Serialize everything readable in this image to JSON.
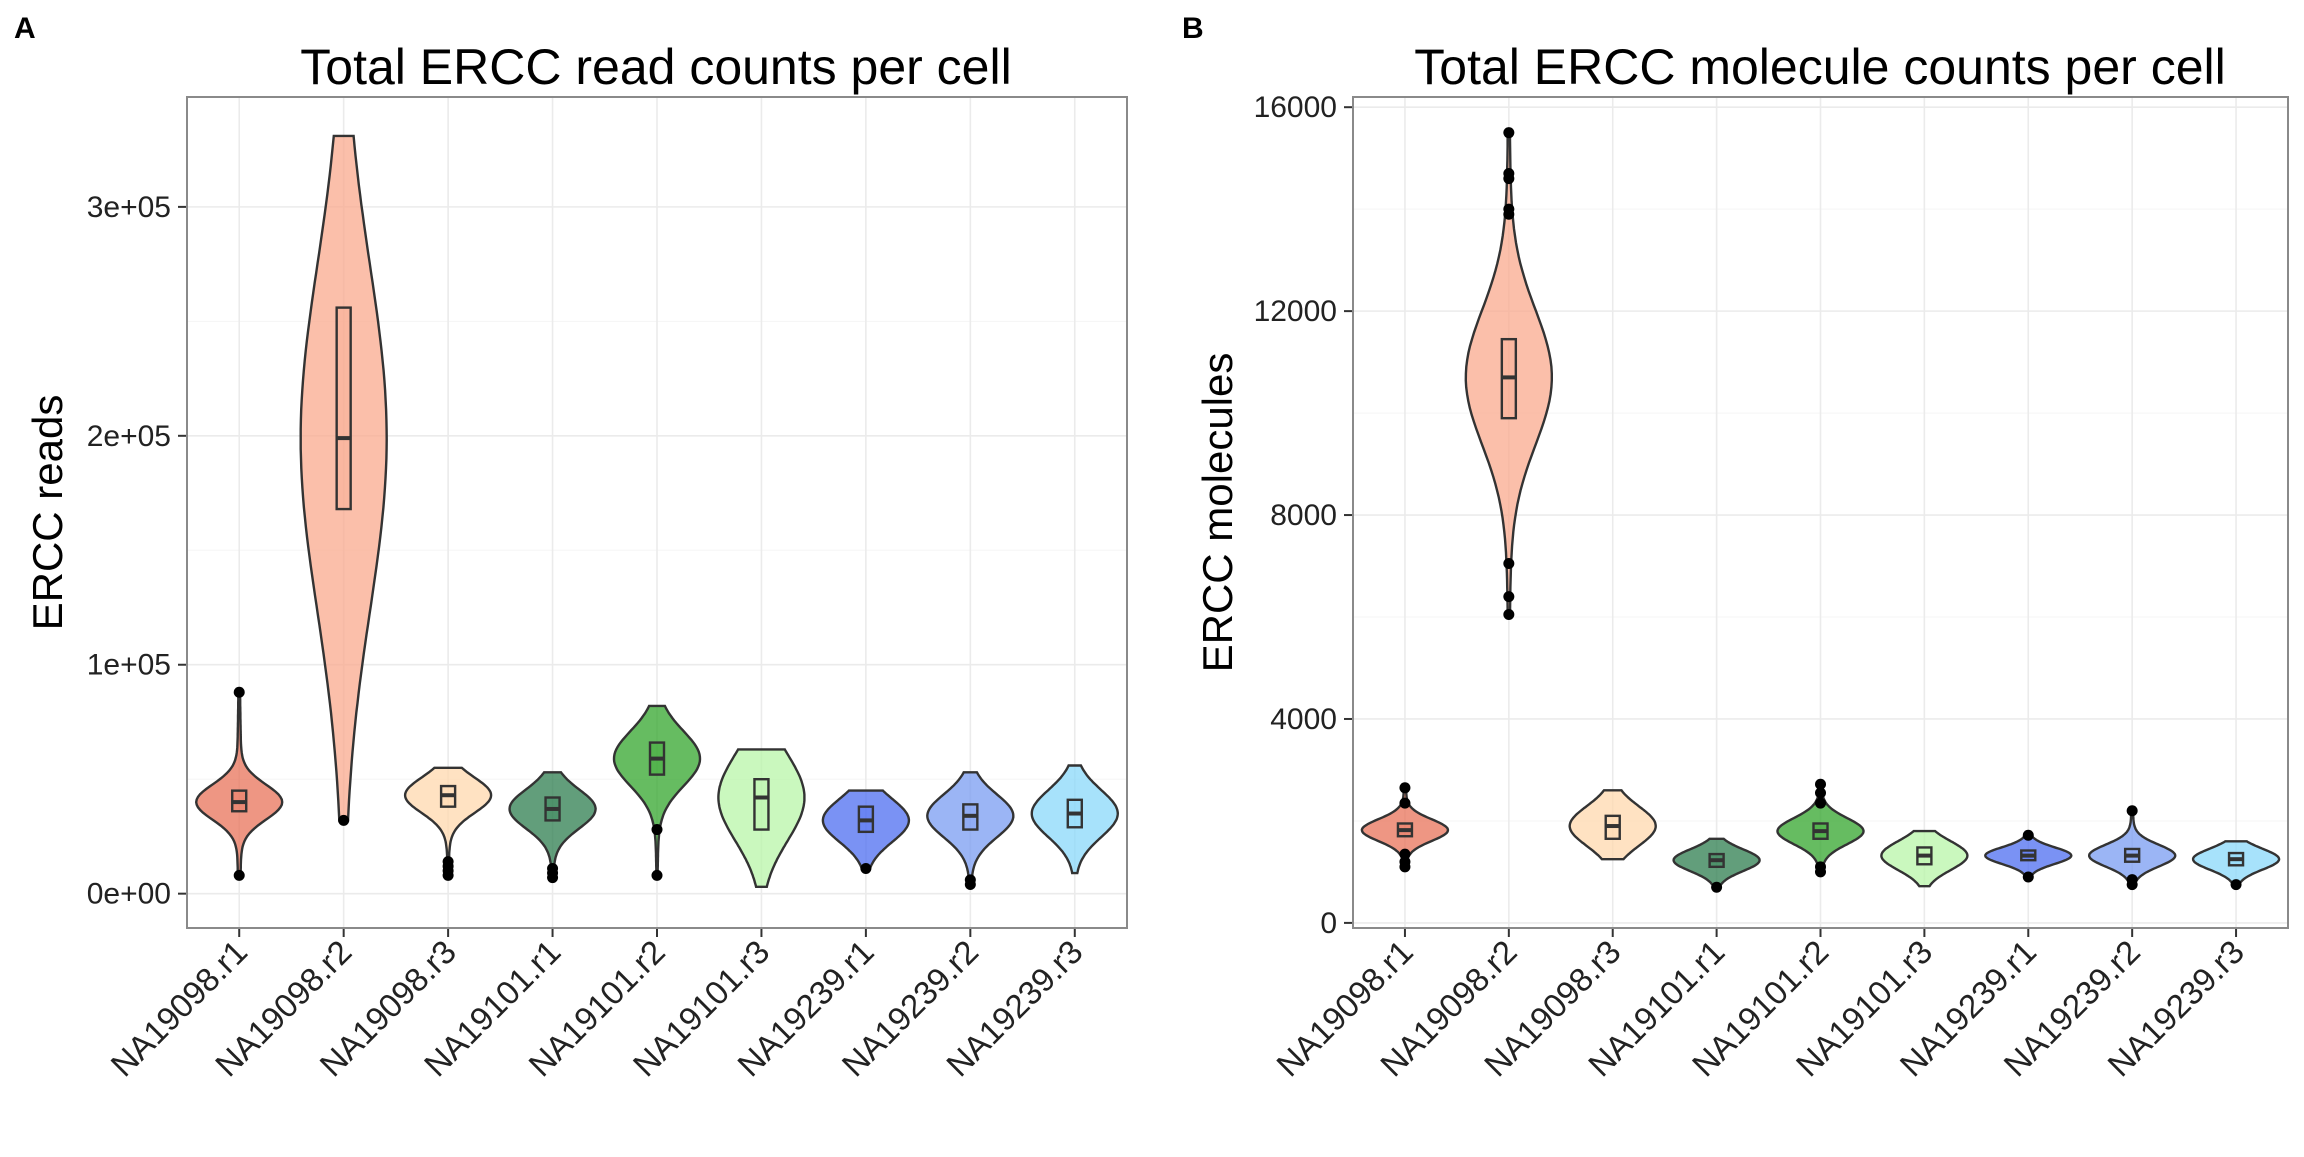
{
  "figure": {
    "panels": [
      {
        "letter": "A",
        "title": "Total ERCC read counts per cell",
        "ylabel": "ERCC reads"
      },
      {
        "letter": "B",
        "title": "Total ERCC molecule counts per cell",
        "ylabel": "ERCC molecules"
      }
    ]
  },
  "chart_data": [
    {
      "type": "violin",
      "title": "Total ERCC read counts per cell",
      "xlabel": "",
      "ylabel": "ERCC reads",
      "ylim": [
        -15000,
        348000
      ],
      "yticks": [
        0,
        100000,
        200000,
        300000
      ],
      "ytick_labels": [
        "0e+00",
        "1e+05",
        "2e+05",
        "3e+05"
      ],
      "grid": true,
      "categories": [
        "NA19098.r1",
        "NA19098.r2",
        "NA19098.r3",
        "NA19101.r1",
        "NA19101.r2",
        "NA19101.r3",
        "NA19239.r1",
        "NA19239.r2",
        "NA19239.r3"
      ],
      "colors": [
        "#e8735a",
        "#f9a98e",
        "#ffd8ad",
        "#2e7d4f",
        "#33a62c",
        "#b8f5a8",
        "#4d6ef0",
        "#7a9cf2",
        "#8ad8fa"
      ],
      "series": [
        {
          "category": "NA19098.r1",
          "min": 8000,
          "q1": 36000,
          "median": 40000,
          "q3": 45000,
          "max": 88000,
          "outliers": [
            8000,
            88000
          ]
        },
        {
          "category": "NA19098.r2",
          "min": 32000,
          "q1": 168000,
          "median": 199000,
          "q3": 256000,
          "max": 331000,
          "outliers": [
            32000
          ]
        },
        {
          "category": "NA19098.r3",
          "min": 8000,
          "q1": 38000,
          "median": 43000,
          "q3": 47000,
          "max": 55000,
          "outliers": [
            8000,
            10000,
            12000,
            14000
          ]
        },
        {
          "category": "NA19101.r1",
          "min": 7000,
          "q1": 32000,
          "median": 37000,
          "q3": 42000,
          "max": 53000,
          "outliers": [
            7000,
            9000,
            11000
          ]
        },
        {
          "category": "NA19101.r2",
          "min": 8000,
          "q1": 52000,
          "median": 59000,
          "q3": 66000,
          "max": 82000,
          "outliers": [
            8000,
            28000
          ]
        },
        {
          "category": "NA19101.r3",
          "min": 3000,
          "q1": 28000,
          "median": 42000,
          "q3": 50000,
          "max": 63000,
          "outliers": []
        },
        {
          "category": "NA19239.r1",
          "min": 11000,
          "q1": 27000,
          "median": 32000,
          "q3": 38000,
          "max": 45000,
          "outliers": [
            11000
          ]
        },
        {
          "category": "NA19239.r2",
          "min": 4000,
          "q1": 28000,
          "median": 34000,
          "q3": 39000,
          "max": 53000,
          "outliers": [
            4000,
            6000
          ]
        },
        {
          "category": "NA19239.r3",
          "min": 9000,
          "q1": 29000,
          "median": 35000,
          "q3": 41000,
          "max": 56000,
          "outliers": []
        }
      ]
    },
    {
      "type": "violin",
      "title": "Total ERCC molecule counts per cell",
      "xlabel": "",
      "ylabel": "ERCC molecules",
      "ylim": [
        -100,
        16200
      ],
      "yticks": [
        0,
        4000,
        8000,
        12000,
        16000
      ],
      "ytick_labels": [
        "0",
        "4000",
        "8000",
        "12000",
        "16000"
      ],
      "grid": true,
      "categories": [
        "NA19098.r1",
        "NA19098.r2",
        "NA19098.r3",
        "NA19101.r1",
        "NA19101.r2",
        "NA19101.r3",
        "NA19239.r1",
        "NA19239.r2",
        "NA19239.r3"
      ],
      "colors": [
        "#e8735a",
        "#f9a98e",
        "#ffd8ad",
        "#2e7d4f",
        "#33a62c",
        "#b8f5a8",
        "#4d6ef0",
        "#7a9cf2",
        "#8ad8fa"
      ],
      "series": [
        {
          "category": "NA19098.r1",
          "min": 1100,
          "q1": 1700,
          "median": 1820,
          "q3": 1950,
          "max": 2650,
          "outliers": [
            1100,
            1200,
            1350,
            2350,
            2650
          ]
        },
        {
          "category": "NA19098.r2",
          "min": 6050,
          "q1": 9900,
          "median": 10700,
          "q3": 11450,
          "max": 15500,
          "outliers": [
            6050,
            6400,
            7050,
            13900,
            14000,
            14600,
            14700,
            15500
          ]
        },
        {
          "category": "NA19098.r3",
          "min": 1250,
          "q1": 1650,
          "median": 1900,
          "q3": 2100,
          "max": 2600,
          "outliers": []
        },
        {
          "category": "NA19101.r1",
          "min": 700,
          "q1": 1100,
          "median": 1230,
          "q3": 1350,
          "max": 1650,
          "outliers": [
            700
          ]
        },
        {
          "category": "NA19101.r2",
          "min": 1000,
          "q1": 1650,
          "median": 1800,
          "q3": 1950,
          "max": 2720,
          "outliers": [
            1000,
            1100,
            2350,
            2550,
            2720
          ]
        },
        {
          "category": "NA19101.r3",
          "min": 720,
          "q1": 1150,
          "median": 1320,
          "q3": 1480,
          "max": 1800,
          "outliers": []
        },
        {
          "category": "NA19239.r1",
          "min": 900,
          "q1": 1230,
          "median": 1320,
          "q3": 1420,
          "max": 1720,
          "outliers": [
            900,
            1720
          ]
        },
        {
          "category": "NA19239.r2",
          "min": 750,
          "q1": 1200,
          "median": 1320,
          "q3": 1450,
          "max": 2200,
          "outliers": [
            750,
            850,
            2200
          ]
        },
        {
          "category": "NA19239.r3",
          "min": 750,
          "q1": 1130,
          "median": 1250,
          "q3": 1370,
          "max": 1600,
          "outliers": [
            750
          ]
        }
      ]
    }
  ]
}
